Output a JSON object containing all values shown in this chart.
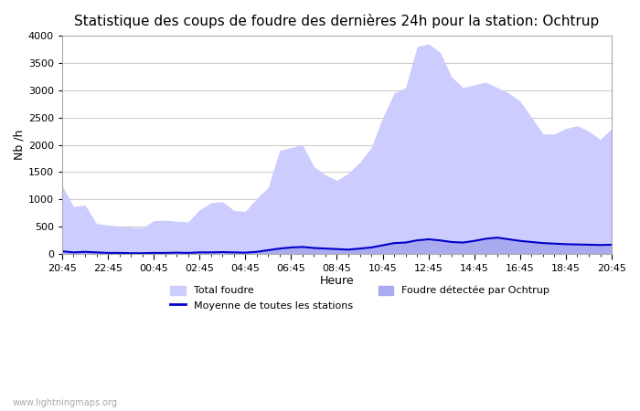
{
  "title": "Statistique des coups de foudre des dernières 24h pour la station: Ochtrup",
  "xlabel": "Heure",
  "ylabel": "Nb /h",
  "ylim": [
    0,
    4000
  ],
  "yticks": [
    0,
    500,
    1000,
    1500,
    2000,
    2500,
    3000,
    3500,
    4000
  ],
  "x_labels_display": [
    "20:45",
    "22:45",
    "00:45",
    "02:45",
    "04:45",
    "06:45",
    "08:45",
    "10:45",
    "12:45",
    "14:45",
    "16:45",
    "18:45",
    "20:45"
  ],
  "background_color": "#ffffff",
  "plot_bg_color": "#ffffff",
  "grid_color": "#cccccc",
  "total_foudre_color": "#ccccff",
  "ochtrup_color": "#aaaaee",
  "moyenne_color": "#0000cc",
  "watermark": "www.lightningmaps.org",
  "total_foudre": [
    1250,
    870,
    900,
    560,
    530,
    510,
    490,
    480,
    610,
    620,
    600,
    590,
    810,
    940,
    960,
    800,
    780,
    1020,
    1220,
    1900,
    1950,
    2000,
    1600,
    1450,
    1350,
    1480,
    1680,
    1950,
    2500,
    2950,
    3050,
    3800,
    3850,
    3700,
    3250,
    3050,
    3100,
    3150,
    3050,
    2950,
    2800,
    2500,
    2200,
    2200,
    2300,
    2350,
    2250,
    2100,
    2300
  ],
  "ochtrup": [
    50,
    30,
    40,
    30,
    20,
    20,
    15,
    15,
    20,
    20,
    25,
    20,
    30,
    30,
    35,
    30,
    25,
    40,
    70,
    100,
    120,
    130,
    110,
    100,
    90,
    80,
    100,
    120,
    160,
    200,
    210,
    250,
    270,
    250,
    220,
    210,
    240,
    280,
    300,
    270,
    240,
    220,
    200,
    190,
    180,
    175,
    170,
    165,
    170
  ],
  "moyenne": [
    50,
    30,
    40,
    30,
    20,
    20,
    15,
    15,
    20,
    20,
    25,
    20,
    30,
    30,
    35,
    30,
    25,
    40,
    70,
    100,
    120,
    130,
    110,
    100,
    90,
    80,
    100,
    120,
    160,
    200,
    210,
    250,
    270,
    250,
    220,
    210,
    240,
    280,
    300,
    270,
    240,
    220,
    200,
    190,
    180,
    175,
    170,
    165,
    170
  ]
}
